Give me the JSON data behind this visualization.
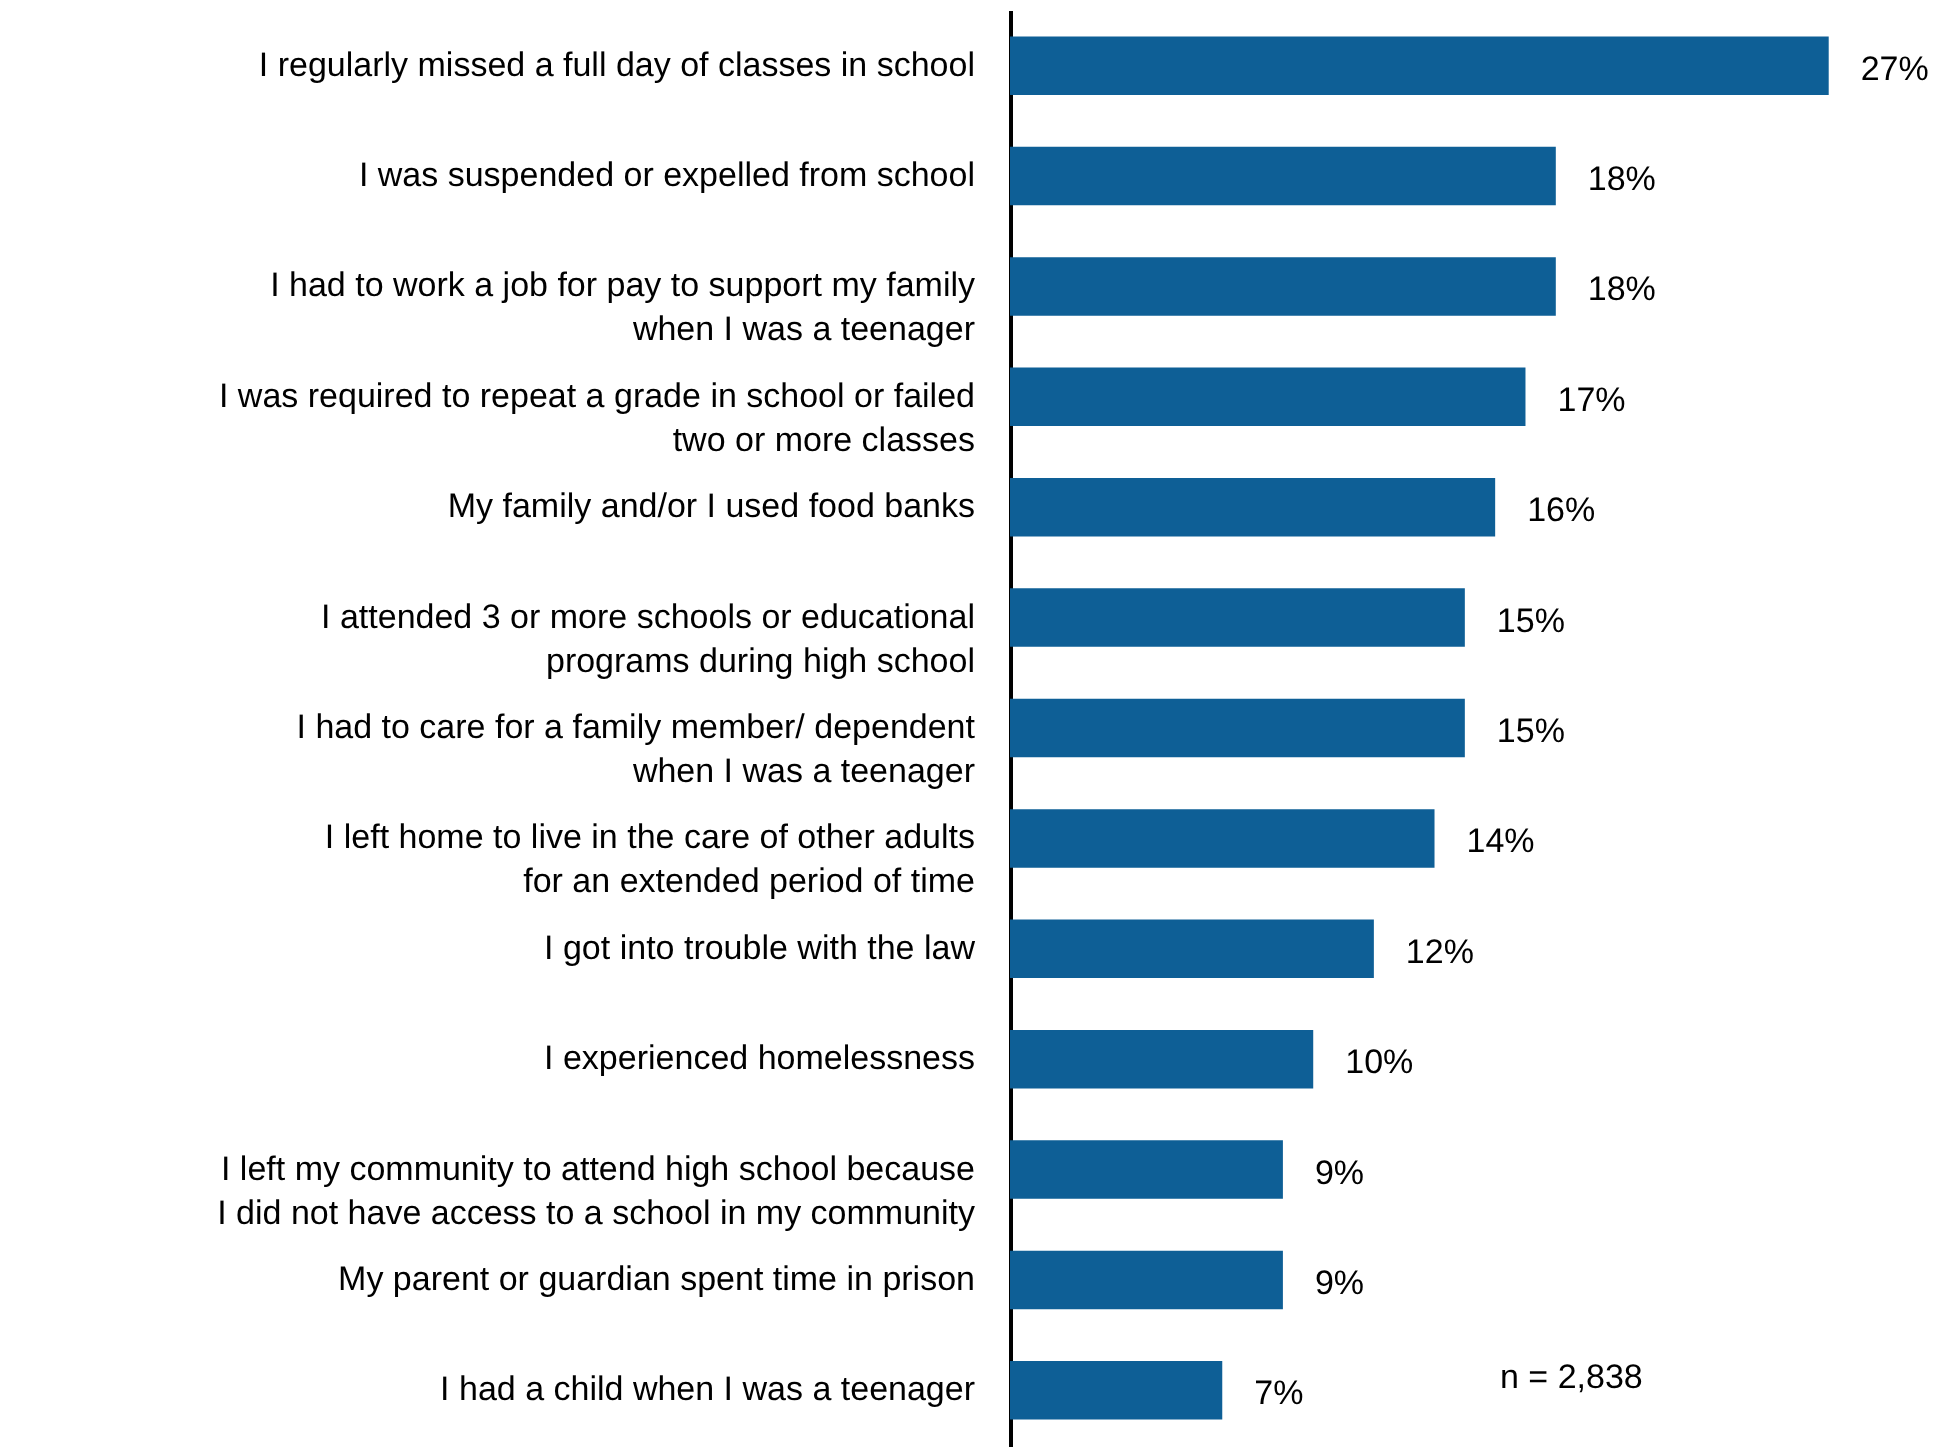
{
  "chart_data": {
    "type": "bar",
    "orientation": "horizontal",
    "categories": [
      "I regularly missed a full day of classes in school",
      "I was suspended or expelled from school",
      "I had to work a job for pay to support my family\nwhen I was a teenager",
      "I was required to repeat a grade in school or failed\ntwo or more classes",
      "My family and/or I used food banks",
      "I attended 3 or more schools or educational\nprograms during high school",
      "I had to care for a family member/ dependent\nwhen I was a teenager",
      "I left home to live in the care of other adults\nfor an extended period of time",
      "I got into trouble with the law",
      "I experienced homelessness",
      "I left my community to attend high school because\nI did not have access to a school in my community",
      "My parent or guardian spent time in prison",
      "I had a child when I was a teenager"
    ],
    "values": [
      27,
      18,
      18,
      17,
      16,
      15,
      15,
      14,
      12,
      10,
      9,
      9,
      7
    ],
    "value_labels": [
      "27%",
      "18%",
      "18%",
      "17%",
      "16%",
      "15%",
      "15%",
      "14%",
      "12%",
      "10%",
      "9%",
      "9%",
      "7%"
    ],
    "color": "#0e5f96",
    "xlim": [
      0,
      31
    ],
    "tick_labels": "y",
    "annotations": [
      "n = 2,838"
    ]
  }
}
